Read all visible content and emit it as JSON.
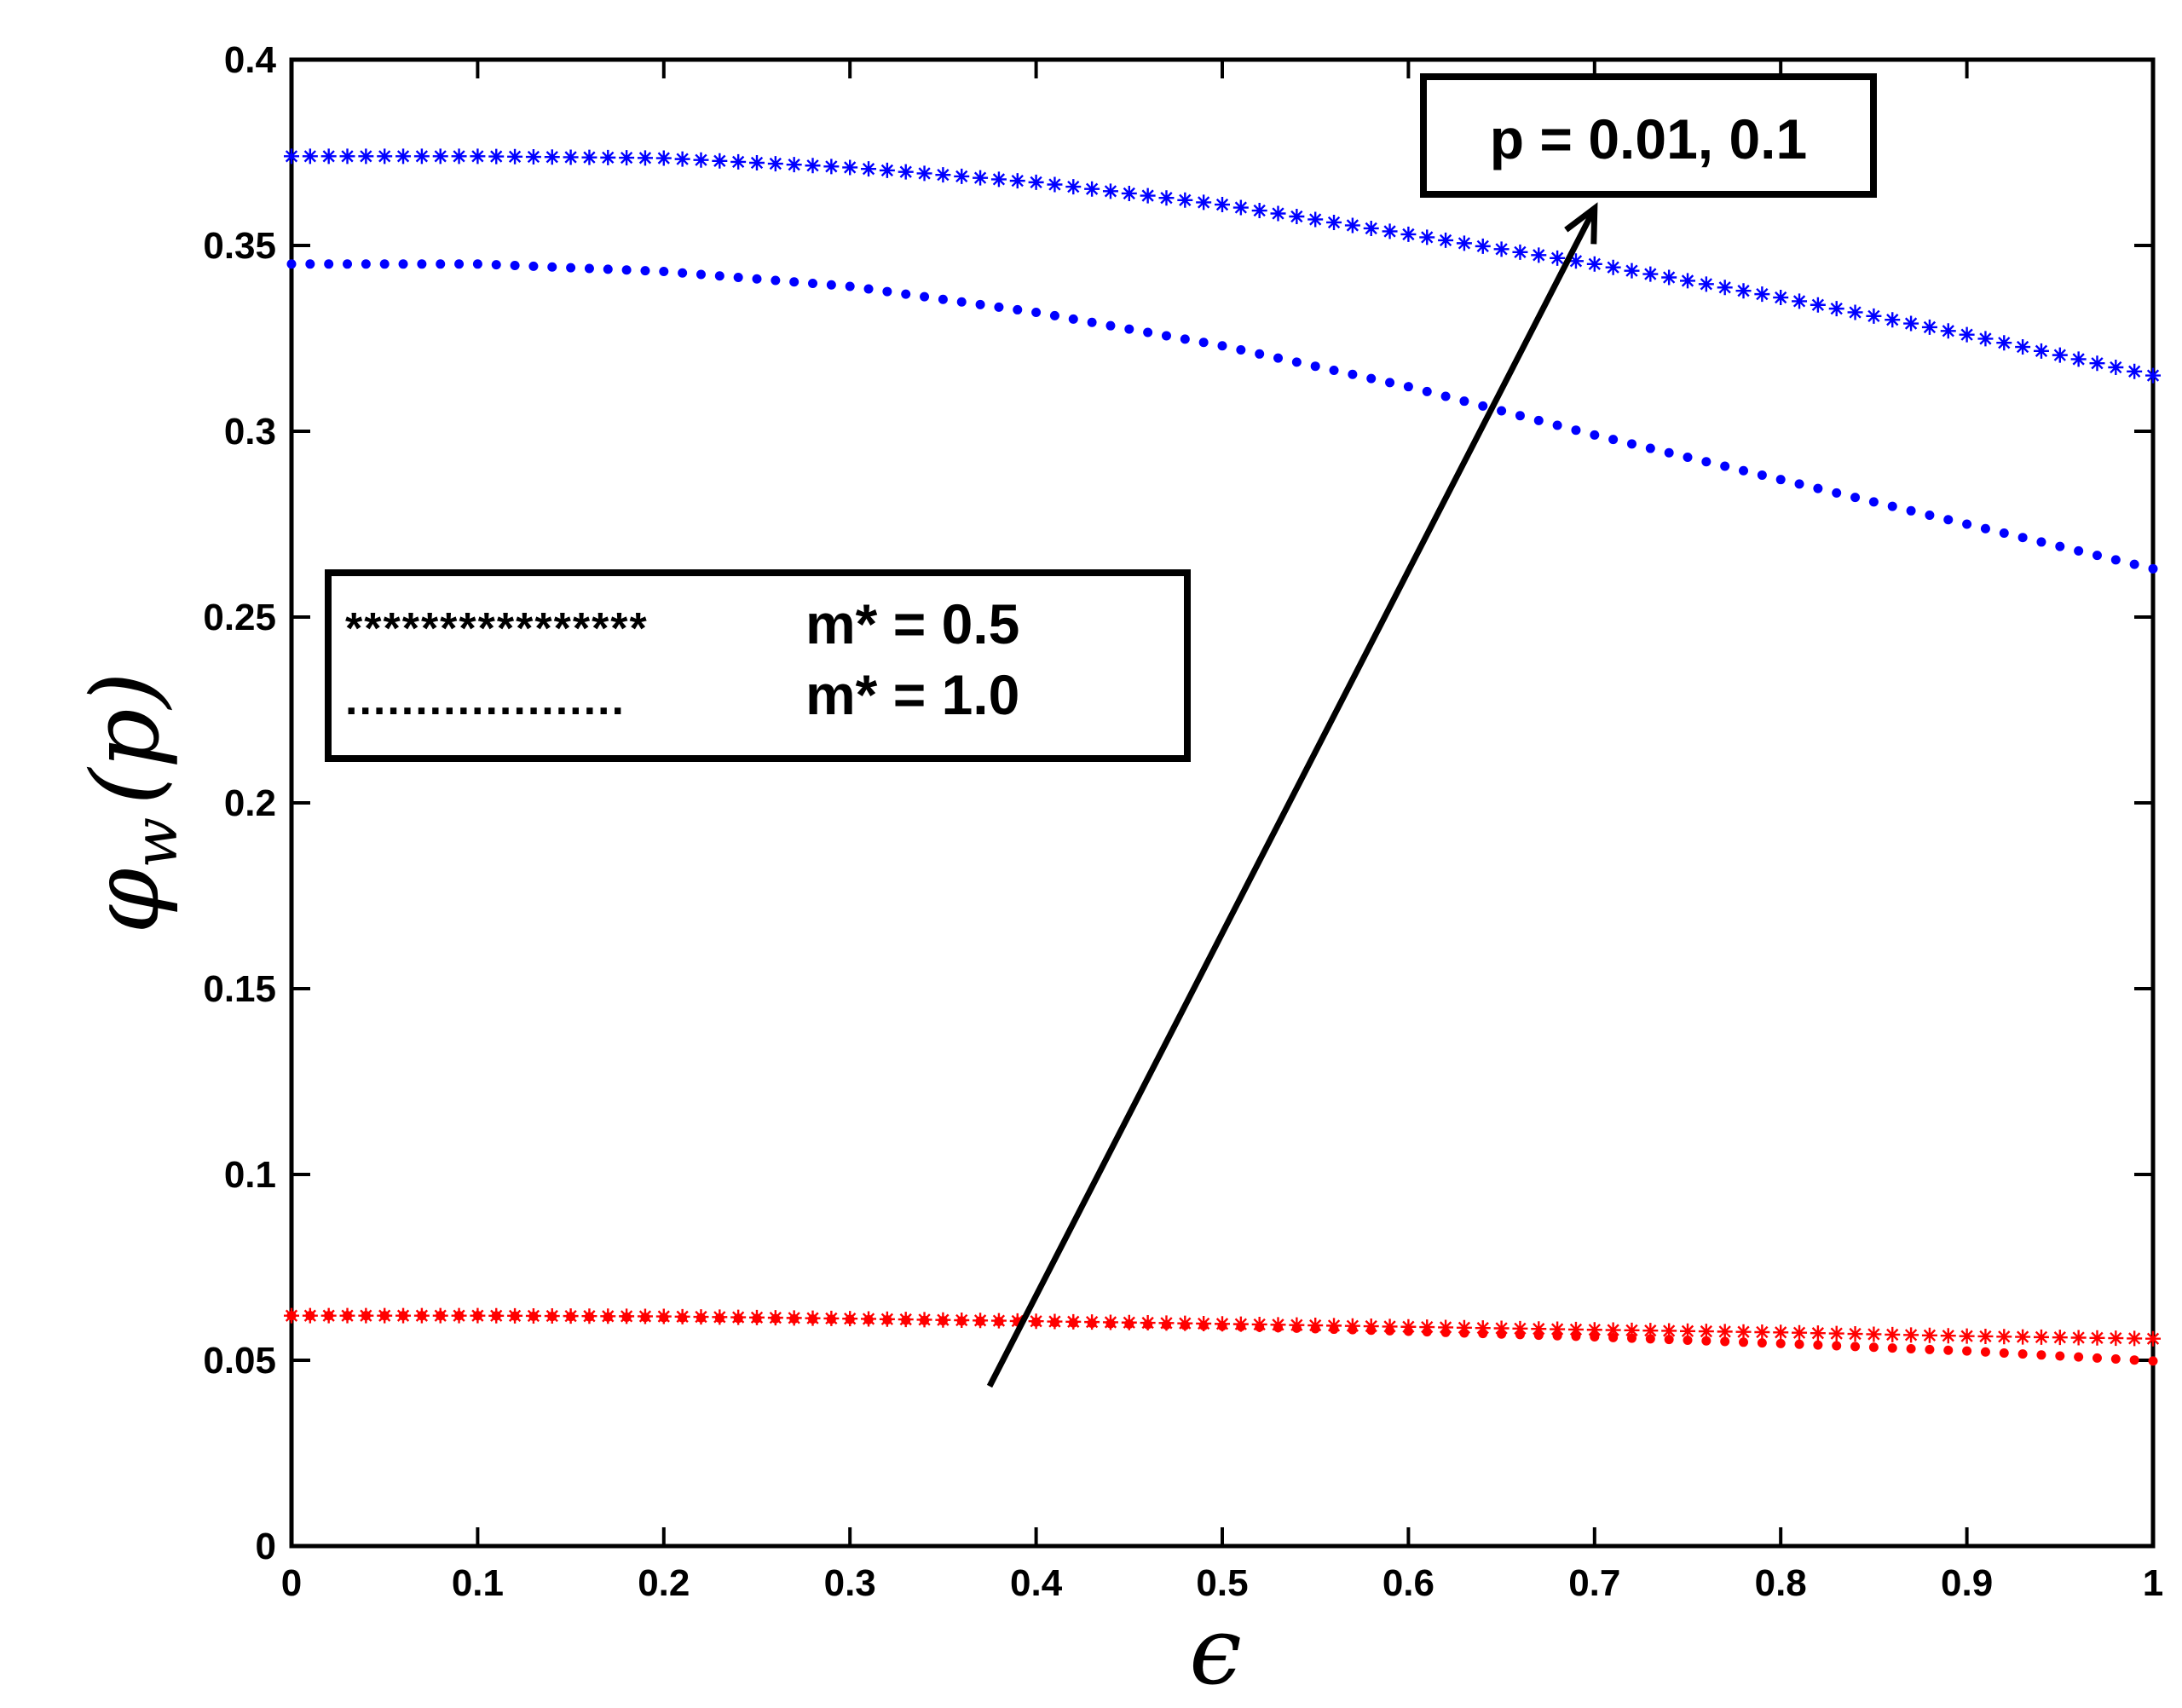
{
  "chart_data": {
    "type": "scatter",
    "title": "",
    "xlabel": "ϵ",
    "ylabel_main": "φ",
    "ylabel_sub": "w",
    "ylabel_arg": "(p)",
    "xlim": [
      0,
      1
    ],
    "ylim": [
      0,
      0.4
    ],
    "xticks": [
      "0",
      "0.1",
      "0.2",
      "0.3",
      "0.4",
      "0.5",
      "0.6",
      "0.7",
      "0.8",
      "0.9",
      "1"
    ],
    "yticks": [
      "0",
      "0.05",
      "0.1",
      "0.15",
      "0.2",
      "0.25",
      "0.3",
      "0.35",
      "0.4"
    ],
    "grid": false,
    "x": [
      0,
      0.1,
      0.2,
      0.3,
      0.4,
      0.5,
      0.6,
      0.7,
      0.8,
      0.9,
      1.0
    ],
    "series": [
      {
        "name": "p = 0.1, m* = 0.5",
        "marker": "star",
        "color": "#0000ff",
        "values": [
          0.374,
          0.374,
          0.3735,
          0.371,
          0.367,
          0.361,
          0.353,
          0.345,
          0.336,
          0.326,
          0.315
        ]
      },
      {
        "name": "p = 0.1, m* = 1.0",
        "marker": "dot",
        "color": "#0000ff",
        "values": [
          0.345,
          0.345,
          0.343,
          0.339,
          0.332,
          0.323,
          0.312,
          0.299,
          0.287,
          0.275,
          0.263
        ]
      },
      {
        "name": "p = 0.01, m* = 0.5",
        "marker": "star",
        "color": "#ff0000",
        "values": [
          0.062,
          0.062,
          0.0618,
          0.0612,
          0.0605,
          0.0598,
          0.059,
          0.0582,
          0.0575,
          0.0565,
          0.0558
        ]
      },
      {
        "name": "p = 0.01, m* = 1.0",
        "marker": "dot",
        "color": "#ff0000",
        "values": [
          0.062,
          0.062,
          0.0615,
          0.061,
          0.0603,
          0.0592,
          0.0578,
          0.0563,
          0.0545,
          0.0525,
          0.0498
        ]
      }
    ],
    "legend": {
      "placement": "center-left",
      "entries": [
        {
          "marker_text": "****************",
          "label": "m* = 0.5"
        },
        {
          "marker_text": "....................",
          "label": "m* = 1.0"
        }
      ]
    },
    "annotation": {
      "text": "p = 0.01, 0.1",
      "arrow_from": [
        0.375,
        0.043
      ],
      "arrow_to": [
        0.7,
        0.36
      ]
    }
  }
}
